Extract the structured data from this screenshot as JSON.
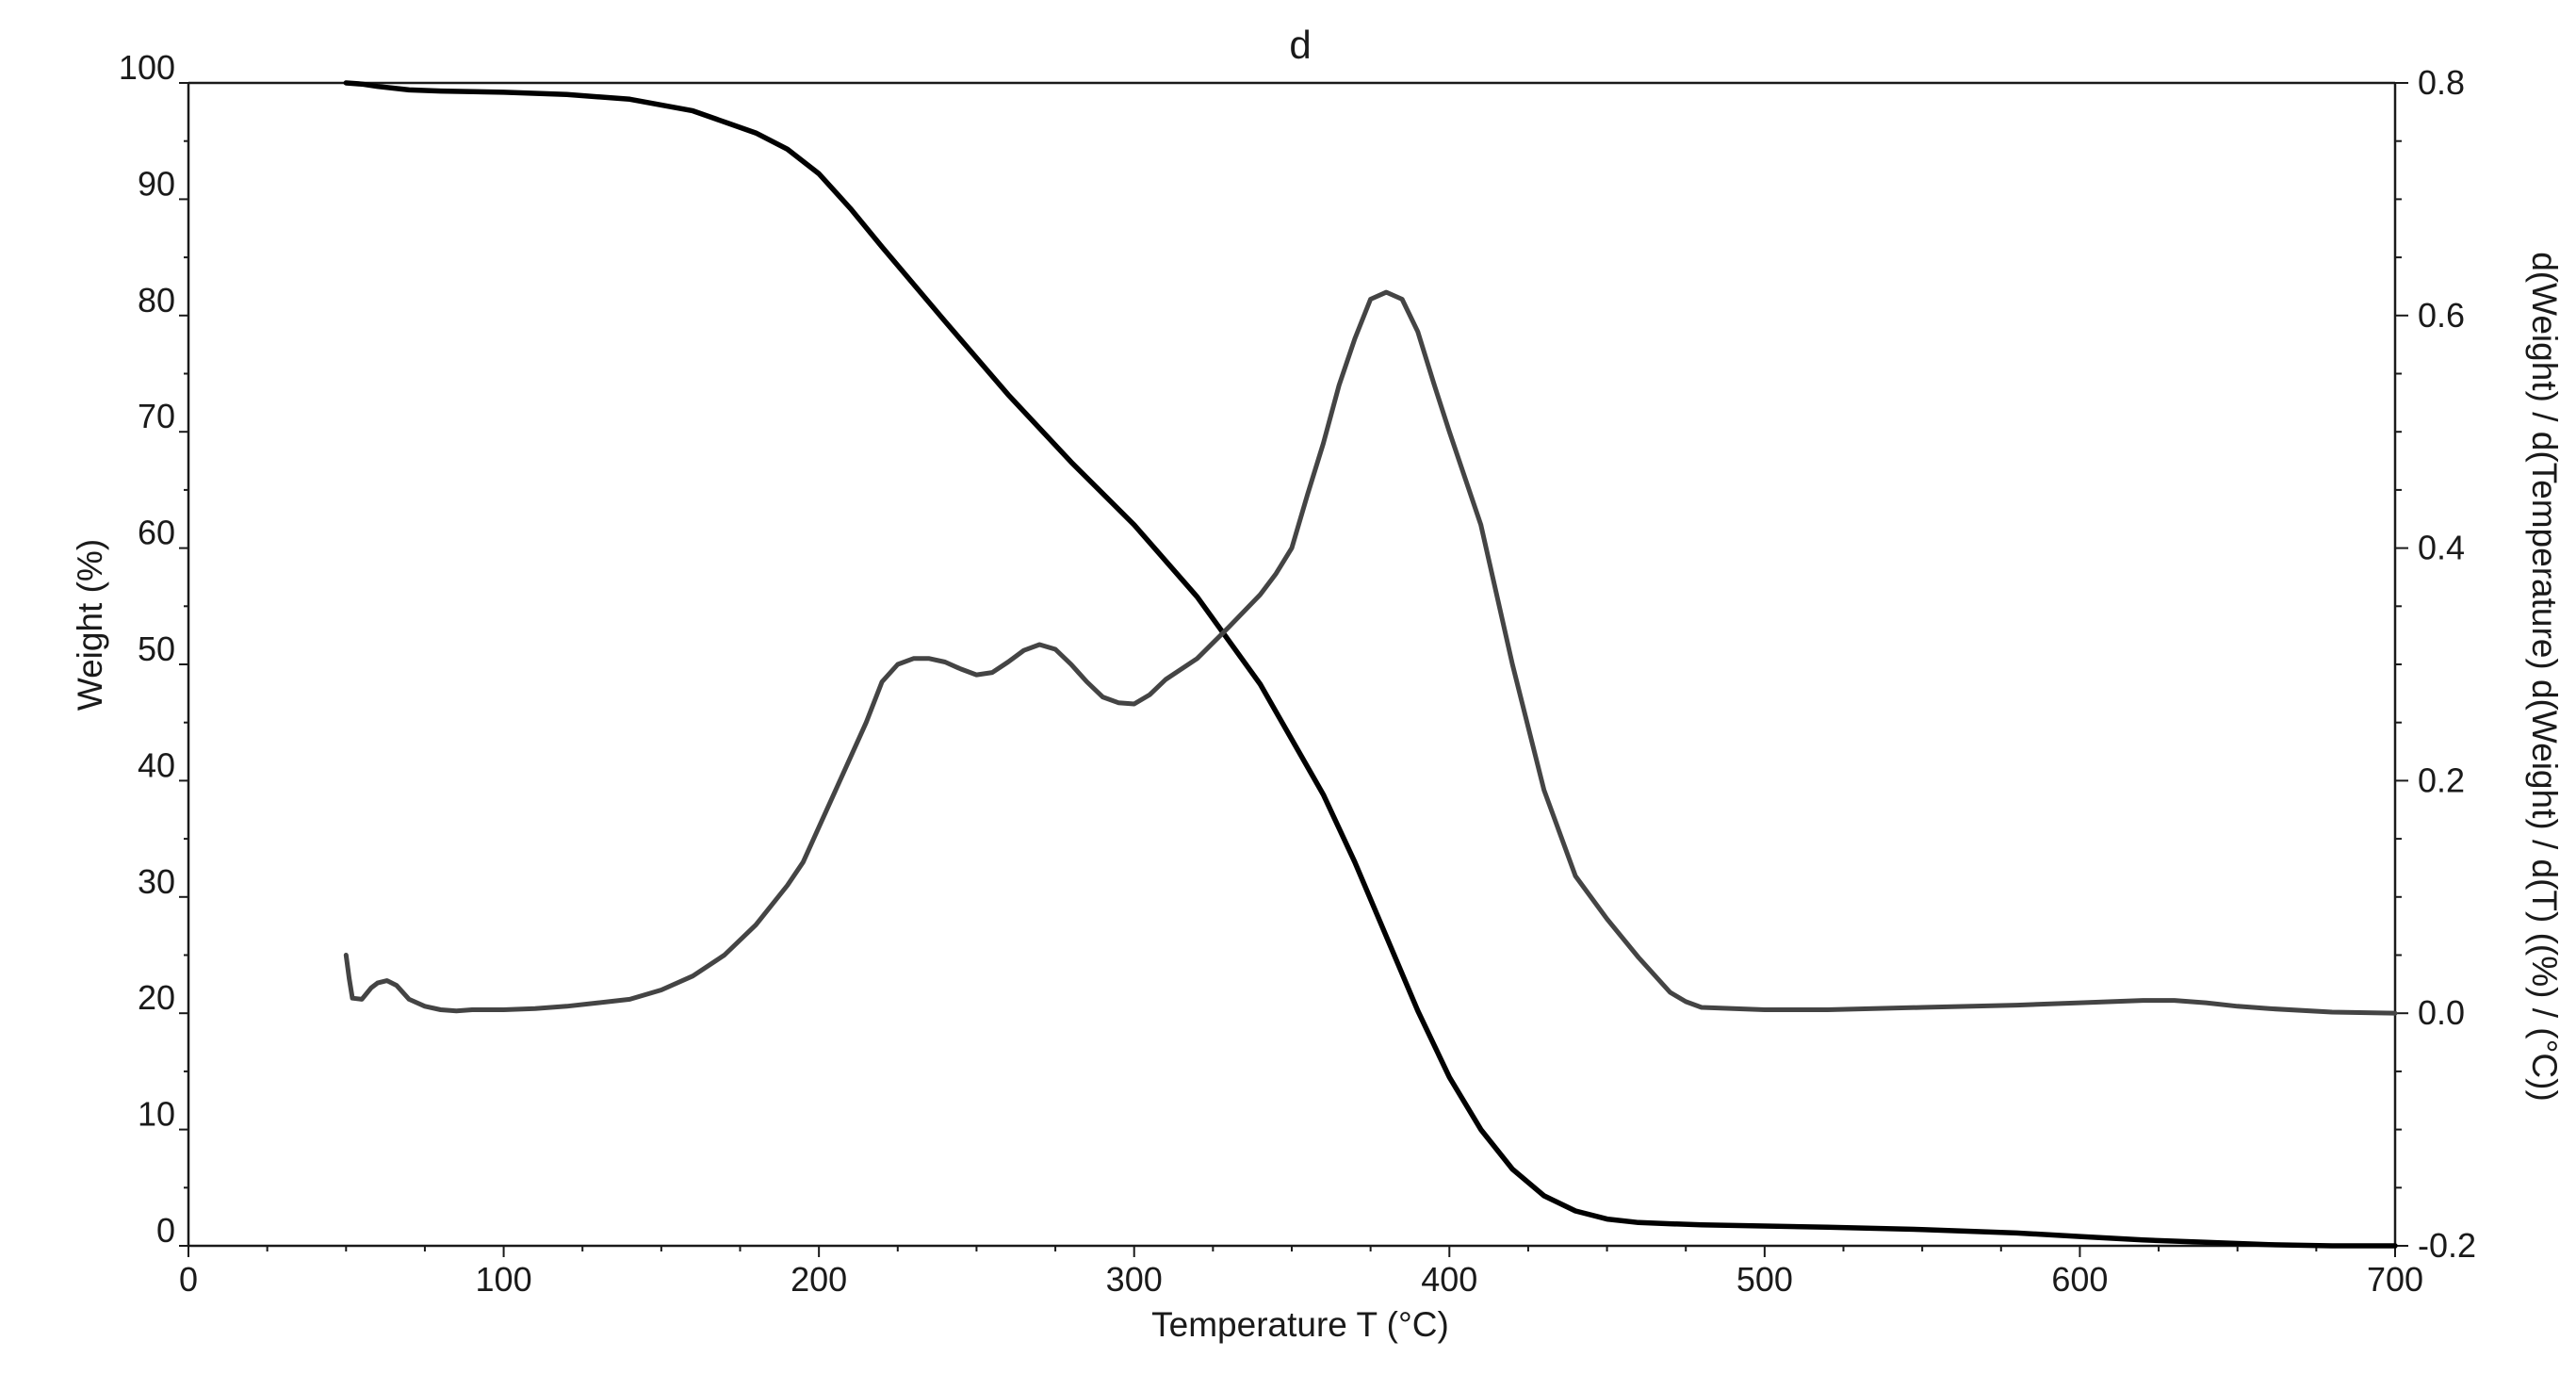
{
  "chart_data": {
    "type": "line",
    "title": "d",
    "xlabel": "Temperature T (°C)",
    "ylabel_left": "Weight (%)",
    "ylabel_right": "d(Weight) / d(Temperature) d(Weight) / d(T) ((%) / (°C))",
    "xlim": [
      0,
      700
    ],
    "ylim_left": [
      0,
      100
    ],
    "ylim_right": [
      -0.2,
      0.8
    ],
    "x_ticks": [
      "0",
      "100",
      "200",
      "300",
      "400",
      "500",
      "600",
      "700"
    ],
    "y_left_ticks": [
      "0",
      "10",
      "20",
      "30",
      "40",
      "50",
      "60",
      "70",
      "80",
      "90",
      "100"
    ],
    "y_right_ticks": [
      "-0.2",
      "0.0",
      "0.2",
      "0.4",
      "0.6",
      "0.8"
    ],
    "grid": false,
    "legend": "none",
    "series": [
      {
        "axis": "left",
        "color": "#000000",
        "x": [
          50,
          55,
          60,
          70,
          80,
          100,
          120,
          140,
          160,
          180,
          190,
          200,
          210,
          220,
          240,
          260,
          280,
          300,
          320,
          340,
          360,
          370,
          380,
          390,
          400,
          410,
          420,
          430,
          440,
          450,
          460,
          470,
          480,
          500,
          520,
          550,
          580,
          600,
          620,
          640,
          660,
          680,
          700
        ],
        "values": [
          100,
          99.9,
          99.7,
          99.4,
          99.3,
          99.2,
          99.0,
          98.6,
          97.6,
          95.7,
          94.3,
          92.2,
          89.2,
          85.9,
          79.5,
          73.2,
          67.4,
          62.0,
          55.8,
          48.3,
          38.8,
          33.0,
          26.6,
          20.2,
          14.5,
          10.0,
          6.6,
          4.3,
          3.0,
          2.3,
          2.0,
          1.9,
          1.8,
          1.7,
          1.6,
          1.4,
          1.1,
          0.8,
          0.5,
          0.3,
          0.1,
          0.0,
          0.0
        ]
      },
      {
        "axis": "right",
        "color": "#444444",
        "x": [
          50,
          51,
          52,
          55,
          58,
          60,
          63,
          66,
          70,
          75,
          80,
          85,
          90,
          100,
          110,
          120,
          130,
          140,
          150,
          160,
          170,
          180,
          190,
          195,
          200,
          205,
          210,
          215,
          220,
          225,
          230,
          235,
          240,
          245,
          250,
          255,
          260,
          265,
          270,
          275,
          280,
          285,
          290,
          295,
          300,
          305,
          310,
          320,
          330,
          340,
          345,
          350,
          355,
          360,
          365,
          370,
          375,
          380,
          385,
          390,
          395,
          400,
          410,
          420,
          430,
          440,
          450,
          460,
          470,
          475,
          480,
          490,
          500,
          520,
          550,
          580,
          600,
          620,
          630,
          640,
          650,
          660,
          680,
          700
        ],
        "values": [
          0.05,
          0.03,
          0.013,
          0.012,
          0.022,
          0.026,
          0.028,
          0.024,
          0.012,
          0.006,
          0.003,
          0.002,
          0.003,
          0.003,
          0.004,
          0.006,
          0.009,
          0.012,
          0.02,
          0.032,
          0.05,
          0.076,
          0.11,
          0.13,
          0.16,
          0.19,
          0.22,
          0.25,
          0.285,
          0.3,
          0.305,
          0.305,
          0.302,
          0.296,
          0.291,
          0.293,
          0.302,
          0.312,
          0.317,
          0.313,
          0.3,
          0.285,
          0.272,
          0.267,
          0.266,
          0.274,
          0.287,
          0.305,
          0.332,
          0.36,
          0.378,
          0.4,
          0.446,
          0.49,
          0.54,
          0.58,
          0.614,
          0.62,
          0.614,
          0.586,
          0.542,
          0.5,
          0.42,
          0.3,
          0.192,
          0.118,
          0.081,
          0.048,
          0.018,
          0.01,
          0.005,
          0.004,
          0.003,
          0.003,
          0.005,
          0.007,
          0.009,
          0.011,
          0.011,
          0.009,
          0.006,
          0.004,
          0.001,
          0.0
        ]
      }
    ]
  }
}
